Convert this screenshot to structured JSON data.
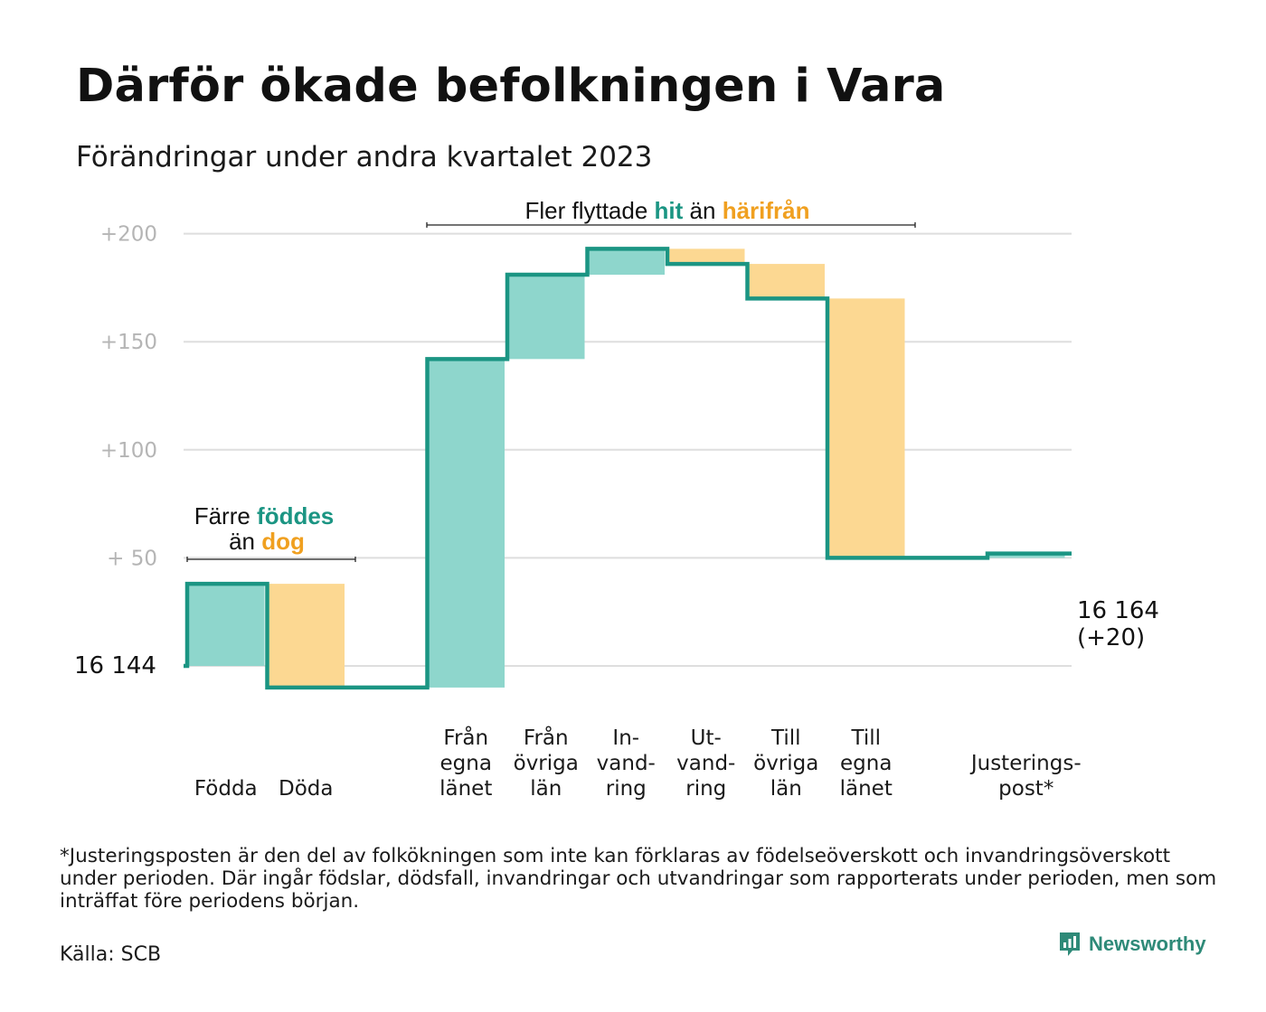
{
  "title": "Därför ökade befolkningen i Vara",
  "subtitle": "Förändringar under andra kvartalet 2023",
  "chart_data": {
    "type": "waterfall",
    "start_value": 16144,
    "start_label": "16  144",
    "end_value": 16164,
    "end_label": "16 164",
    "end_change_label": "(+20)",
    "y_ticks": [
      {
        "value": 50,
        "label": "+  50"
      },
      {
        "value": 100,
        "label": "+100"
      },
      {
        "value": 150,
        "label": "+150"
      },
      {
        "value": 200,
        "label": "+200"
      }
    ],
    "ylim": [
      -15,
      200
    ],
    "categories": [
      {
        "lines": [
          "Födda"
        ],
        "change": 38
      },
      {
        "lines": [
          "Döda"
        ],
        "change": -48
      },
      {
        "lines": [
          "Från",
          "egna",
          "länet"
        ],
        "change": 152
      },
      {
        "lines": [
          "Från",
          "övriga",
          "län"
        ],
        "change": 39
      },
      {
        "lines": [
          "In-",
          "vand-",
          "ring"
        ],
        "change": 12
      },
      {
        "lines": [
          "Ut-",
          "vand-",
          "ring"
        ],
        "change": -7
      },
      {
        "lines": [
          "Till",
          "övriga",
          "län"
        ],
        "change": -16
      },
      {
        "lines": [
          "Till",
          "egna",
          "länet"
        ],
        "change": -120
      },
      {
        "lines": [
          "Justerings-",
          "post*"
        ],
        "change": 2
      }
    ],
    "annotations": [
      {
        "id": "births",
        "line1_parts": [
          {
            "text": "Färre ",
            "style": "plain"
          },
          {
            "text": "föddes",
            "style": "green"
          }
        ],
        "line2_parts": [
          {
            "text": "än ",
            "style": "plain"
          },
          {
            "text": "dog",
            "style": "orange"
          }
        ]
      },
      {
        "id": "moves",
        "parts": [
          {
            "text": "Fler flyttade ",
            "style": "plain"
          },
          {
            "text": "hit",
            "style": "green"
          },
          {
            "text": " än ",
            "style": "plain"
          },
          {
            "text": "härifrån",
            "style": "orange"
          }
        ]
      }
    ],
    "colors": {
      "increase_fill": "#8ed6cc",
      "decrease_fill": "#fcd892",
      "line": "#1b9583",
      "green_text": "#1b9583",
      "orange_text": "#f0a020",
      "grid": "#dedede"
    }
  },
  "footnote": "*Justeringsposten är den del av folkökningen som inte kan förklaras av födelseöverskott och invandringsöverskott under perioden. Där ingår födslar, dödsfall, invandringar och utvandringar som rapporterats under perioden, men som inträffat före periodens början.",
  "source": "Källa: SCB",
  "brand": {
    "name": "Newsworthy",
    "icon": "newsworthy-logo-icon"
  }
}
